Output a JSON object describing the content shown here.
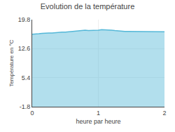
{
  "chart_data": {
    "type": "area",
    "title": "Evolution de la température",
    "x_label": "heure par heure",
    "y_label": "Température en °C",
    "x": [
      0.0,
      0.05,
      0.1,
      0.15,
      0.2,
      0.25,
      0.3,
      0.35,
      0.4,
      0.45,
      0.5,
      0.55,
      0.6,
      0.65,
      0.7,
      0.75,
      0.8,
      0.85,
      0.9,
      0.95,
      1.0,
      1.05,
      1.1,
      1.15,
      1.2,
      1.25,
      1.3,
      1.35,
      1.4,
      1.45,
      1.5,
      1.55,
      1.6,
      1.65,
      1.7,
      1.75,
      1.8,
      1.85,
      1.9,
      1.95,
      2.0
    ],
    "series": [
      {
        "color": "#55b8d8",
        "values": [
          16.2,
          16.2,
          16.3,
          16.4,
          16.5,
          16.5,
          16.5,
          16.6,
          16.7,
          16.7,
          16.7,
          16.8,
          16.9,
          16.9,
          17.0,
          17.1,
          17.2,
          17.1,
          17.1,
          17.2,
          17.2,
          17.3,
          17.3,
          17.2,
          17.2,
          17.1,
          17.0,
          16.9,
          16.9,
          16.9,
          16.9,
          16.9,
          16.8,
          16.8,
          16.8,
          16.8,
          16.8,
          16.8,
          16.8,
          16.8,
          16.8
        ]
      }
    ],
    "xlim": [
      0,
      2
    ],
    "xticks": [
      0,
      1,
      2
    ],
    "ylim": [
      -1.8,
      19.8
    ],
    "yticks": [
      -1.8,
      5.4,
      12.6,
      19.8
    ],
    "grid": true
  }
}
